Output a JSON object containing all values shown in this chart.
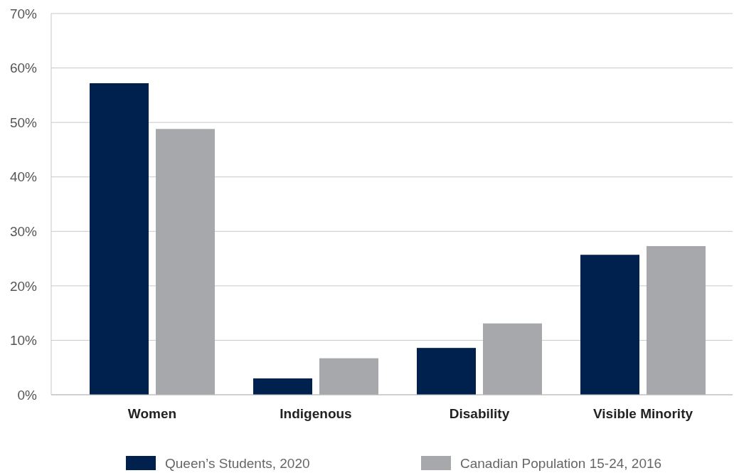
{
  "chart_data": {
    "type": "bar",
    "categories": [
      "Women",
      "Indigenous",
      "Disability",
      "Visible Minority"
    ],
    "series": [
      {
        "name": "Queen’s Students, 2020",
        "color": "#00204e",
        "values": [
          57.2,
          3.0,
          8.6,
          25.7
        ]
      },
      {
        "name": "Canadian Population 15-24, 2016",
        "color": "#a7a8ab",
        "values": [
          48.8,
          6.7,
          13.1,
          27.3
        ]
      }
    ],
    "ylim": [
      0,
      70
    ],
    "yticks": [
      {
        "value": 0,
        "label": "0%"
      },
      {
        "value": 10,
        "label": "10%"
      },
      {
        "value": 20,
        "label": "20%"
      },
      {
        "value": 30,
        "label": "30%"
      },
      {
        "value": 40,
        "label": "40%"
      },
      {
        "value": 50,
        "label": "50%"
      },
      {
        "value": 60,
        "label": "60%"
      },
      {
        "value": 70,
        "label": "70%"
      }
    ],
    "grid": "y",
    "legend": "bottom"
  }
}
